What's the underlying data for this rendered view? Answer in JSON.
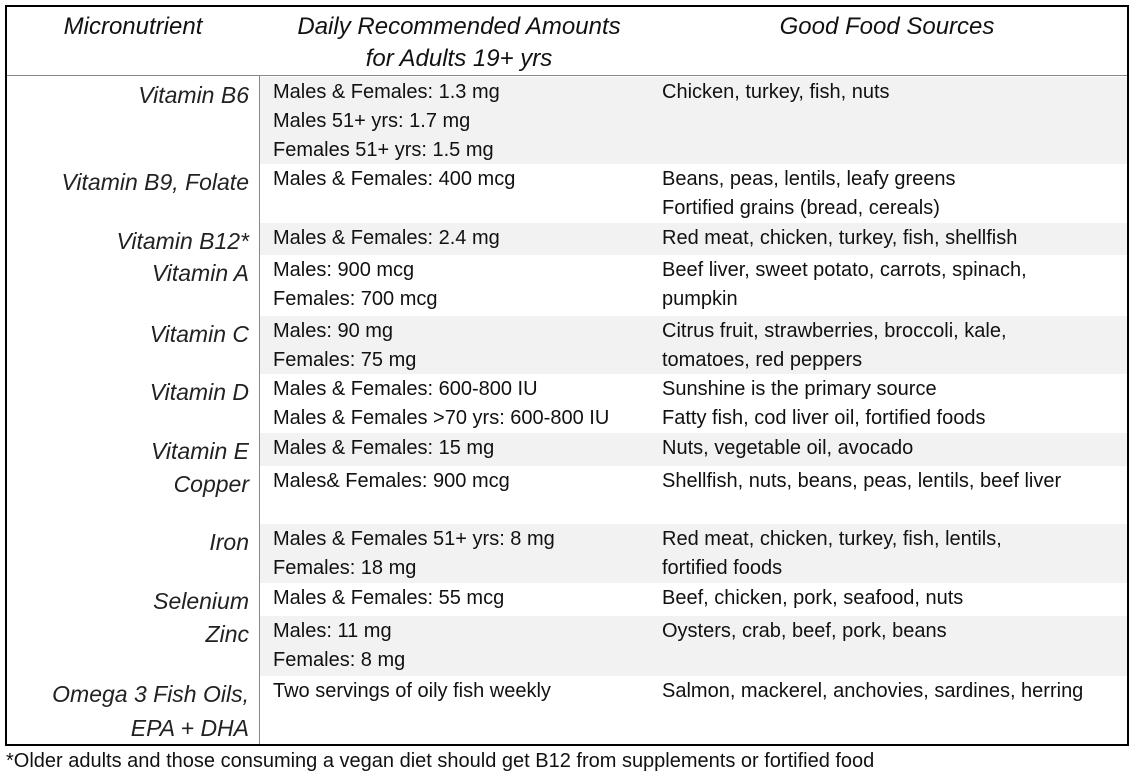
{
  "table": {
    "headers": [
      [
        "Micronutrient"
      ],
      [
        "Daily Recommended Amounts",
        "for Adults 19+ yrs"
      ],
      [
        "Good Food Sources"
      ]
    ],
    "rows": [
      {
        "name": [
          "Vitamin B6"
        ],
        "amounts": [
          "Males & Females: 1.3 mg",
          "Males 51+ yrs: 1.7 mg",
          "Females 51+ yrs: 1.5 mg"
        ],
        "sources": [
          "Chicken, turkey, fish, nuts"
        ]
      },
      {
        "name": [
          "Vitamin B9, Folate"
        ],
        "amounts": [
          "Males & Females: 400 mcg"
        ],
        "sources": [
          "Beans, peas, lentils, leafy greens",
          "Fortified grains (bread, cereals)"
        ]
      },
      {
        "name": [
          "Vitamin B12*"
        ],
        "amounts": [
          "Males & Females: 2.4 mg"
        ],
        "sources": [
          "Red meat, chicken, turkey, fish, shellfish"
        ]
      },
      {
        "name": [
          "Vitamin A"
        ],
        "amounts": [
          "Males: 900 mcg",
          "Females: 700 mcg"
        ],
        "sources": [
          "Beef liver, sweet potato, carrots, spinach,",
          "pumpkin"
        ]
      },
      {
        "name": [
          "Vitamin C"
        ],
        "amounts": [
          "Males: 90 mg",
          "Females: 75 mg"
        ],
        "sources": [
          "Citrus fruit, strawberries, broccoli, kale,",
          "tomatoes, red peppers"
        ]
      },
      {
        "name": [
          "Vitamin D"
        ],
        "amounts": [
          "Males & Females: 600-800 IU",
          "Males & Females >70 yrs: 600-800 IU"
        ],
        "sources": [
          "Sunshine is the primary source",
          "Fatty fish, cod liver oil, fortified foods"
        ]
      },
      {
        "name": [
          "Vitamin E"
        ],
        "amounts": [
          "Males & Females: 15 mg"
        ],
        "sources": [
          "Nuts, vegetable oil, avocado"
        ]
      },
      {
        "name": [
          "Copper"
        ],
        "amounts": [
          "Males& Females: 900 mcg"
        ],
        "sources": [
          "Shellfish, nuts, beans, peas, lentils, beef liver"
        ]
      },
      {
        "name": [
          "Iron"
        ],
        "amounts": [
          "Males & Females 51+ yrs:  8 mg",
          "Females: 18 mg"
        ],
        "sources": [
          "Red meat, chicken, turkey, fish, lentils,",
          "fortified foods"
        ]
      },
      {
        "name": [
          "Selenium"
        ],
        "amounts": [
          "Males & Females: 55 mcg"
        ],
        "sources": [
          "Beef, chicken, pork, seafood, nuts"
        ]
      },
      {
        "name": [
          "Zinc"
        ],
        "amounts": [
          "Males: 11 mg",
          "Females: 8 mg"
        ],
        "sources": [
          "Oysters, crab, beef, pork, beans"
        ]
      },
      {
        "name": [
          "Omega 3 Fish Oils,",
          "EPA + DHA"
        ],
        "amounts": [
          "Two servings of oily fish weekly"
        ],
        "sources": [
          "Salmon, mackerel, anchovies, sardines, herring"
        ]
      }
    ]
  },
  "footnote": "*Older adults and those consuming a vegan diet should get B12 from supplements or fortified food"
}
